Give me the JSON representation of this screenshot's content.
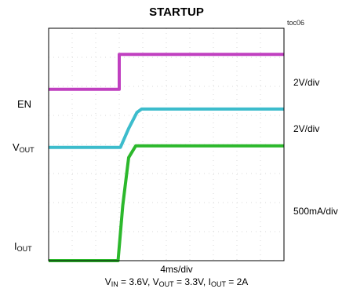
{
  "title": "STARTUP",
  "figure_id": "toc06",
  "channel_labels": {
    "en": "EN",
    "vout": {
      "main": "V",
      "sub": "OUT"
    },
    "iout": {
      "main": "I",
      "sub": "OUT"
    }
  },
  "scale_labels": [
    "2V/div",
    "2V/div",
    "500mA/div"
  ],
  "time_label": "4ms/div",
  "conditions": {
    "vin_main": "V",
    "vin_sub": "IN",
    "vin_val": " = 3.6V, ",
    "vout_main": "V",
    "vout_sub": "OUT",
    "vout_val": " = 3.3V, ",
    "iout_main": "I",
    "iout_sub": "OUT",
    "iout_val": " = 2A"
  },
  "colors": {
    "en": "#c040c0",
    "vout": "#3cbccc",
    "iout": "#2cb82c",
    "grid": "#d8d8d8",
    "frame": "#000000"
  },
  "chart_data": {
    "type": "line",
    "title": "STARTUP",
    "xlabel": "4ms/div",
    "x_divisions": 10,
    "y_divisions": 8,
    "xlim": [
      0,
      10
    ],
    "ylim": [
      0,
      8
    ],
    "x_unit": "div",
    "y_unit": "div",
    "grid": true,
    "series": [
      {
        "name": "EN",
        "points": [
          [
            0,
            5.9
          ],
          [
            3.0,
            5.9
          ],
          [
            3.0,
            7.1
          ],
          [
            10,
            7.1
          ]
        ]
      },
      {
        "name": "VOUT",
        "points": [
          [
            0,
            3.9
          ],
          [
            3.05,
            3.9
          ],
          [
            3.4,
            4.55
          ],
          [
            3.75,
            5.1
          ],
          [
            3.95,
            5.22
          ],
          [
            10,
            5.22
          ]
        ]
      },
      {
        "name": "IOUT",
        "points": [
          [
            0,
            0.0
          ],
          [
            2.95,
            0.0
          ],
          [
            3.15,
            1.9
          ],
          [
            3.4,
            3.55
          ],
          [
            3.7,
            3.95
          ],
          [
            10,
            3.95
          ]
        ]
      }
    ]
  }
}
